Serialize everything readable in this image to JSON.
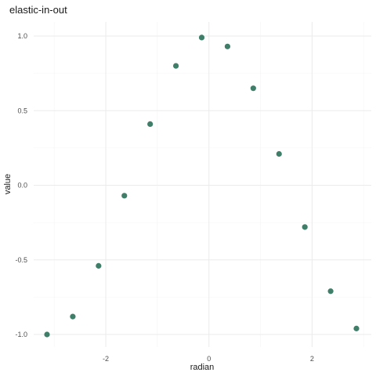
{
  "chart_data": {
    "type": "scatter",
    "title": "elastic-in-out",
    "xlabel": "radian",
    "ylabel": "value",
    "x": [
      -3.14,
      -2.64,
      -2.14,
      -1.64,
      -1.14,
      -0.64,
      -0.14,
      0.36,
      0.86,
      1.36,
      1.86,
      2.36,
      2.86
    ],
    "y": [
      -1.0,
      -0.88,
      -0.54,
      -0.07,
      0.41,
      0.8,
      0.99,
      0.93,
      0.65,
      0.21,
      -0.28,
      -0.71,
      -0.96
    ],
    "xlim": [
      -3.14,
      2.86
    ],
    "ylim": [
      -1.0,
      1.0
    ],
    "x_ticks": [
      -2,
      0,
      2
    ],
    "y_ticks": [
      -1.0,
      -0.5,
      0.0,
      0.5,
      1.0
    ],
    "x_tick_labels": [
      "-2",
      "0",
      "2"
    ],
    "y_tick_labels": [
      "-1.0",
      "-0.5",
      "0.0",
      "0.5",
      "1.0"
    ],
    "point_color": "#3f7f6a",
    "grid": true,
    "legend": "none"
  }
}
